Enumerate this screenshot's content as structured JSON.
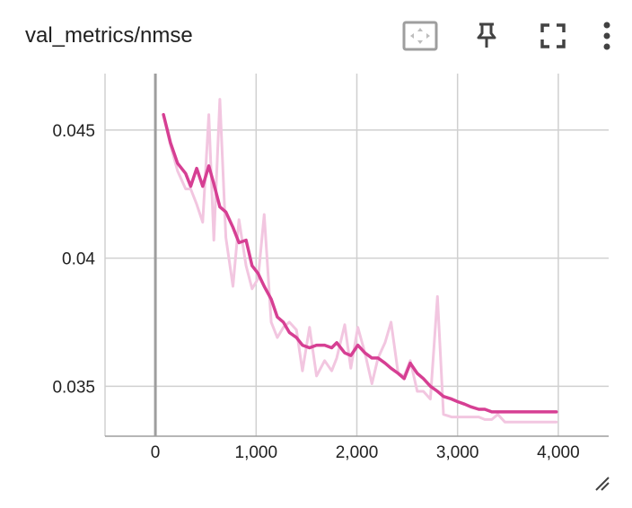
{
  "card": {
    "title": "val_metrics/nmse"
  },
  "toolbar": {
    "buttons": [
      {
        "name": "fit-domain-button",
        "icon": "fit-to-data-icon"
      },
      {
        "name": "pin-button",
        "icon": "pin-icon"
      },
      {
        "name": "fullscreen-button",
        "icon": "fullscreen-icon"
      },
      {
        "name": "more-menu-button",
        "icon": "more-vert-icon"
      }
    ]
  },
  "chart_data": {
    "type": "line",
    "title": "val_metrics/nmse",
    "xlabel": "",
    "ylabel": "",
    "xlim": [
      -500,
      4500
    ],
    "ylim": [
      0.03305,
      0.0472
    ],
    "x_ticks": [
      0,
      1000,
      2000,
      3000,
      4000
    ],
    "x_tick_labels": [
      "0",
      "1,000",
      "2,000",
      "3,000",
      "4,000"
    ],
    "y_ticks": [
      0.035,
      0.04,
      0.045
    ],
    "y_tick_labels": [
      "0.035",
      "0.04",
      "0.045"
    ],
    "grid": true,
    "colors": {
      "raw": "#f2c6e0",
      "smoothed": "#d63f93",
      "axis": "#9e9e9e",
      "grid": "#d0d0d0"
    },
    "series": [
      {
        "role": "raw",
        "x": [
          80,
          150,
          220,
          300,
          350,
          410,
          470,
          530,
          580,
          640,
          700,
          770,
          830,
          900,
          960,
          1020,
          1080,
          1150,
          1210,
          1270,
          1330,
          1400,
          1460,
          1530,
          1600,
          1680,
          1750,
          1800,
          1880,
          1940,
          2010,
          2080,
          2150,
          2210,
          2280,
          2340,
          2410,
          2470,
          2530,
          2600,
          2660,
          2730,
          2800,
          2860,
          2940,
          3000,
          3070,
          3130,
          3210,
          3270,
          3340,
          3400,
          3470,
          3530,
          3600,
          3660,
          3730,
          3800,
          3860,
          3920,
          3980
        ],
        "y": [
          0.0456,
          0.0444,
          0.0434,
          0.0427,
          0.0427,
          0.0421,
          0.0414,
          0.0456,
          0.0407,
          0.0462,
          0.0408,
          0.0389,
          0.0415,
          0.0397,
          0.0388,
          0.0392,
          0.0417,
          0.0375,
          0.0369,
          0.0373,
          0.0375,
          0.0372,
          0.0356,
          0.0373,
          0.0354,
          0.036,
          0.0356,
          0.0361,
          0.0374,
          0.0357,
          0.0373,
          0.0363,
          0.0351,
          0.0361,
          0.0367,
          0.0375,
          0.0355,
          0.0354,
          0.036,
          0.0348,
          0.0348,
          0.0345,
          0.0385,
          0.0339,
          0.0338,
          0.0338,
          0.0338,
          0.0338,
          0.0338,
          0.0337,
          0.0337,
          0.0339,
          0.0336,
          0.0336,
          0.0336,
          0.0336,
          0.0336,
          0.0336,
          0.0336,
          0.0336,
          0.0336
        ]
      },
      {
        "role": "smoothed",
        "x": [
          80,
          150,
          220,
          300,
          350,
          410,
          470,
          530,
          580,
          640,
          700,
          770,
          830,
          900,
          960,
          1020,
          1080,
          1150,
          1210,
          1270,
          1330,
          1400,
          1460,
          1530,
          1600,
          1680,
          1750,
          1800,
          1880,
          1940,
          2010,
          2080,
          2150,
          2210,
          2280,
          2340,
          2410,
          2470,
          2530,
          2600,
          2660,
          2730,
          2800,
          2860,
          2940,
          3000,
          3070,
          3130,
          3210,
          3270,
          3340,
          3400,
          3470,
          3530,
          3600,
          3660,
          3730,
          3800,
          3860,
          3920,
          3980
        ],
        "y": [
          0.0456,
          0.0445,
          0.0437,
          0.0433,
          0.0428,
          0.0435,
          0.0428,
          0.0436,
          0.0429,
          0.042,
          0.0418,
          0.0412,
          0.0406,
          0.0407,
          0.0397,
          0.0394,
          0.0389,
          0.0384,
          0.0377,
          0.0375,
          0.0371,
          0.0369,
          0.0366,
          0.0365,
          0.0366,
          0.0366,
          0.0365,
          0.0367,
          0.0363,
          0.0362,
          0.0366,
          0.0363,
          0.0361,
          0.0361,
          0.0359,
          0.0357,
          0.0355,
          0.0353,
          0.0359,
          0.0355,
          0.0353,
          0.035,
          0.0348,
          0.0346,
          0.0345,
          0.0344,
          0.0343,
          0.0342,
          0.0341,
          0.0341,
          0.034,
          0.034,
          0.034,
          0.034,
          0.034,
          0.034,
          0.034,
          0.034,
          0.034,
          0.034,
          0.034
        ]
      }
    ]
  }
}
